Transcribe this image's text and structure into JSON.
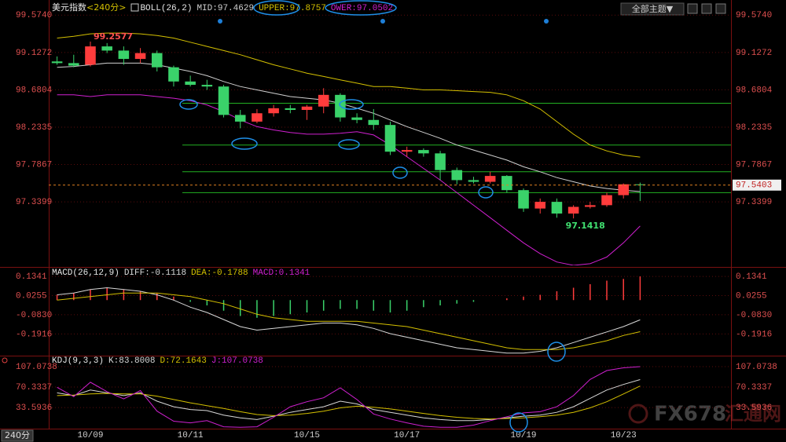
{
  "ui": {
    "theme_button": "全部主题▼",
    "period_tab": "240分",
    "watermark": "FX678",
    "watermark_cn": "汇通网"
  },
  "chart_data": [
    {
      "type": "candlestick",
      "title": "美元指数",
      "period": "<240分>",
      "indicator": "BOLL(26,2)",
      "categories": [
        null,
        null,
        "10/09",
        null,
        null,
        null,
        null,
        null,
        "10/11",
        null,
        null,
        null,
        null,
        null,
        null,
        "10/15",
        null,
        null,
        null,
        null,
        null,
        "10/17",
        null,
        null,
        null,
        null,
        null,
        null,
        "10/19",
        null,
        null,
        null,
        null,
        null,
        "10/23",
        null
      ],
      "open": [
        99.02,
        99.0,
        98.98,
        99.2,
        99.15,
        99.05,
        99.12,
        98.95,
        98.78,
        98.74,
        98.72,
        98.38,
        98.3,
        98.4,
        98.46,
        98.44,
        98.48,
        98.62,
        98.35,
        98.32,
        98.26,
        97.94,
        97.96,
        97.92,
        97.72,
        97.6,
        97.58,
        97.65,
        97.48,
        97.26,
        97.34,
        97.2,
        97.28,
        97.3,
        97.42,
        97.55
      ],
      "high": [
        99.08,
        99.1,
        99.2577,
        99.24,
        99.2,
        99.18,
        99.15,
        98.97,
        98.85,
        98.8,
        98.74,
        98.44,
        98.45,
        98.5,
        98.5,
        98.5,
        98.7,
        98.64,
        98.4,
        98.45,
        98.3,
        98.0,
        97.98,
        97.95,
        97.75,
        97.64,
        97.7,
        97.66,
        97.5,
        97.38,
        97.38,
        97.3,
        97.34,
        97.45,
        97.56,
        97.57
      ],
      "low": [
        98.98,
        98.95,
        98.96,
        99.12,
        98.98,
        99.0,
        98.9,
        98.72,
        98.72,
        98.68,
        98.35,
        98.22,
        98.28,
        98.36,
        98.4,
        98.32,
        98.4,
        98.3,
        98.28,
        98.2,
        97.9,
        97.88,
        97.88,
        97.6,
        97.55,
        97.56,
        97.56,
        97.45,
        97.22,
        97.2,
        97.15,
        97.1418,
        97.26,
        97.28,
        97.38,
        97.35
      ],
      "close": [
        99.0,
        98.97,
        99.2,
        99.15,
        99.05,
        99.12,
        98.95,
        98.78,
        98.74,
        98.72,
        98.38,
        98.3,
        98.4,
        98.46,
        98.44,
        98.48,
        98.62,
        98.35,
        98.32,
        98.26,
        97.94,
        97.96,
        97.92,
        97.72,
        97.6,
        97.58,
        97.65,
        97.48,
        97.26,
        97.34,
        97.2,
        97.28,
        97.3,
        97.42,
        97.55,
        97.5403
      ],
      "up_color": "#ff3c3c",
      "down_color": "#3ad26a",
      "series": [
        {
          "name": "MID:97.4629",
          "color": "#d0d0d0",
          "values": [
            98.95,
            98.96,
            98.98,
            99.0,
            99.0,
            99.0,
            98.98,
            98.94,
            98.9,
            98.85,
            98.78,
            98.72,
            98.68,
            98.64,
            98.6,
            98.58,
            98.56,
            98.52,
            98.46,
            98.4,
            98.32,
            98.24,
            98.17,
            98.1,
            98.02,
            97.96,
            97.9,
            97.84,
            97.76,
            97.7,
            97.63,
            97.58,
            97.53,
            97.5,
            97.48,
            97.4629
          ]
        },
        {
          "name": "UPPER:97.8757",
          "color": "#d4c000",
          "values": [
            99.3,
            99.32,
            99.35,
            99.36,
            99.36,
            99.35,
            99.33,
            99.3,
            99.25,
            99.2,
            99.15,
            99.1,
            99.04,
            98.98,
            98.93,
            98.88,
            98.84,
            98.8,
            98.76,
            98.72,
            98.72,
            98.7,
            98.68,
            98.68,
            98.67,
            98.66,
            98.65,
            98.62,
            98.55,
            98.45,
            98.3,
            98.15,
            98.02,
            97.95,
            97.9,
            97.8757
          ]
        },
        {
          "name": "OWER:97.0502",
          "color": "#d020d0",
          "values": [
            98.62,
            98.62,
            98.6,
            98.62,
            98.62,
            98.62,
            98.6,
            98.58,
            98.55,
            98.5,
            98.42,
            98.32,
            98.24,
            98.2,
            98.17,
            98.15,
            98.15,
            98.16,
            98.18,
            98.14,
            98.02,
            97.88,
            97.74,
            97.6,
            97.45,
            97.3,
            97.15,
            97.0,
            96.85,
            96.72,
            96.62,
            96.58,
            96.6,
            96.68,
            96.85,
            97.0502
          ]
        }
      ],
      "levels": [
        98.52,
        98.02,
        97.7,
        97.45
      ],
      "level_color": "#22b022",
      "ylim": [
        96.58,
        99.68
      ],
      "yticks": [
        {
          "value": 99.574,
          "label": "99.5740"
        },
        99.1272,
        98.6804,
        98.2335,
        97.7867,
        97.3399
      ]
    },
    {
      "type": "macd",
      "title": "MACD(26,12,9)",
      "series": [
        {
          "name": "DIFF:-0.1118",
          "color": "#d8d8d8",
          "values": [
            0.03,
            0.04,
            0.06,
            0.07,
            0.06,
            0.05,
            0.03,
            0.0,
            -0.04,
            -0.07,
            -0.11,
            -0.15,
            -0.17,
            -0.16,
            -0.15,
            -0.14,
            -0.13,
            -0.13,
            -0.14,
            -0.16,
            -0.19,
            -0.21,
            -0.23,
            -0.25,
            -0.27,
            -0.28,
            -0.29,
            -0.3,
            -0.3,
            -0.29,
            -0.27,
            -0.24,
            -0.21,
            -0.18,
            -0.15,
            -0.1118
          ]
        },
        {
          "name": "DEA:-0.1788",
          "color": "#d4c000",
          "values": [
            0.0,
            0.01,
            0.02,
            0.03,
            0.04,
            0.04,
            0.04,
            0.03,
            0.02,
            0.0,
            -0.02,
            -0.05,
            -0.08,
            -0.1,
            -0.11,
            -0.12,
            -0.12,
            -0.12,
            -0.12,
            -0.13,
            -0.14,
            -0.15,
            -0.17,
            -0.19,
            -0.21,
            -0.23,
            -0.25,
            -0.27,
            -0.28,
            -0.28,
            -0.28,
            -0.27,
            -0.25,
            -0.23,
            -0.2,
            -0.1788
          ]
        }
      ],
      "bars": {
        "name": "MACD:0.1341",
        "color": "#d020d0",
        "up_color": "#ff3c3c",
        "down_color": "#3ad26a",
        "values": [
          0.03,
          0.04,
          0.06,
          0.07,
          0.06,
          0.05,
          0.04,
          0.02,
          -0.01,
          -0.03,
          -0.06,
          -0.09,
          -0.1,
          -0.09,
          -0.08,
          -0.07,
          -0.06,
          -0.05,
          -0.05,
          -0.06,
          -0.07,
          -0.06,
          -0.04,
          -0.03,
          -0.02,
          -0.01,
          0.0,
          0.01,
          0.02,
          0.03,
          0.05,
          0.07,
          0.09,
          0.11,
          0.12,
          0.1341
        ]
      },
      "ylim": [
        -0.31,
        0.17
      ],
      "yticks": [
        0.1341,
        0.0255,
        {
          "value": -0.083,
          "label": "-0.0830"
        },
        -0.1916
      ]
    },
    {
      "type": "line",
      "title": "KDJ(9,3,3)",
      "series": [
        {
          "name": "K:83.8008",
          "color": "#d8d8d8",
          "values": [
            60,
            55,
            65,
            60,
            55,
            60,
            45,
            35,
            30,
            28,
            20,
            15,
            12,
            18,
            25,
            30,
            35,
            45,
            40,
            30,
            25,
            20,
            15,
            12,
            10,
            10,
            12,
            15,
            18,
            20,
            25,
            35,
            50,
            65,
            75,
            83.8008
          ]
        },
        {
          "name": "D:72.1643",
          "color": "#d4c000",
          "values": [
            55,
            56,
            58,
            59,
            58,
            58,
            54,
            48,
            42,
            37,
            32,
            26,
            21,
            19,
            20,
            23,
            27,
            33,
            36,
            34,
            31,
            27,
            23,
            19,
            16,
            14,
            13,
            14,
            15,
            17,
            20,
            25,
            33,
            44,
            58,
            72.1643
          ]
        },
        {
          "name": "J:107.0738",
          "color": "#d020d0",
          "values": [
            70,
            53,
            79,
            62,
            49,
            64,
            27,
            9,
            6,
            10,
            -1,
            -2,
            -1,
            16,
            35,
            44,
            51,
            69,
            48,
            22,
            13,
            6,
            0,
            -2,
            -2,
            2,
            10,
            17,
            24,
            26,
            35,
            55,
            84,
            100,
            105,
            107.0738
          ]
        }
      ],
      "ylim": [
        -3,
        124
      ],
      "yticks": [
        107.0738,
        70.3337,
        33.5936
      ]
    }
  ]
}
